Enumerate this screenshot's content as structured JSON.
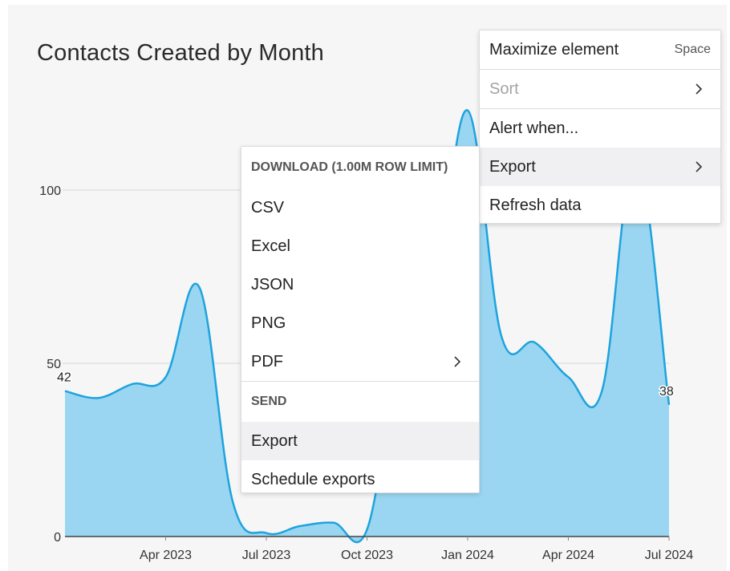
{
  "chart_title": "Contacts Created by Month",
  "colors": {
    "area_fill": "#9ad6f1",
    "line": "#1ea3de",
    "grid": "#d7d7d7",
    "panel_bg": "#f6f6f6"
  },
  "chart_data": {
    "type": "area",
    "title": "Contacts Created by Month",
    "xlabel": "",
    "ylabel": "",
    "ylim": [
      0,
      100
    ],
    "y_ticks": [
      0,
      50,
      100
    ],
    "x_ticks": [
      "Apr 2023",
      "Jul 2023",
      "Oct 2023",
      "Jan 2024",
      "Apr 2024",
      "Jul 2024"
    ],
    "x": [
      "Jan 2023",
      "Feb 2023",
      "Mar 2023",
      "Apr 2023",
      "May 2023",
      "Jun 2023",
      "Jul 2023",
      "Aug 2023",
      "Sep 2023",
      "Oct 2023",
      "Nov 2023",
      "Dec 2023",
      "Jan 2024",
      "Feb 2024",
      "Mar 2024",
      "Apr 2024",
      "May 2024",
      "Jun 2024",
      "Jul 2024"
    ],
    "values": [
      42,
      40,
      44,
      46,
      72,
      10,
      1,
      3,
      4,
      2,
      55,
      70,
      123,
      58,
      56,
      46,
      42,
      110,
      38
    ],
    "data_labels": {
      "first": "42",
      "last": "38"
    },
    "grid": true
  },
  "context_menu": {
    "items": [
      {
        "label": "Maximize element",
        "shortcut": "Space"
      },
      {
        "label": "Sort"
      },
      {
        "label": "Alert when..."
      },
      {
        "label": "Export"
      },
      {
        "label": "Refresh data"
      }
    ]
  },
  "export_menu": {
    "download_header": "DOWNLOAD (1.00M ROW LIMIT)",
    "download_items": [
      "CSV",
      "Excel",
      "JSON",
      "PNG",
      "PDF"
    ],
    "send_header": "SEND",
    "send_items": [
      "Export",
      "Schedule exports"
    ]
  }
}
